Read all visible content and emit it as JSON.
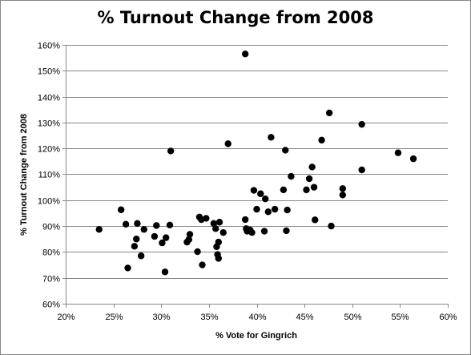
{
  "chart_data": {
    "type": "scatter",
    "title": "% Turnout Change from 2008",
    "xlabel": "% Vote for Gingrich",
    "ylabel": "% Turnout Change from 2008",
    "xlim": [
      0.2,
      0.6
    ],
    "ylim": [
      0.6,
      1.6
    ],
    "x_ticks": [
      0.2,
      0.25,
      0.3,
      0.35,
      0.4,
      0.45,
      0.5,
      0.55,
      0.6
    ],
    "x_tick_labels": [
      "20%",
      "25%",
      "30%",
      "35%",
      "40%",
      "45%",
      "50%",
      "55%",
      "60%"
    ],
    "y_ticks": [
      0.6,
      0.7,
      0.8,
      0.9,
      1.0,
      1.1,
      1.2,
      1.3,
      1.4,
      1.5,
      1.6
    ],
    "y_tick_labels": [
      "60%",
      "70%",
      "80%",
      "90%",
      "100%",
      "110%",
      "120%",
      "130%",
      "140%",
      "150%",
      "160%"
    ],
    "grid": "horizontal",
    "legend": "none",
    "marker_color": "#000000",
    "points": [
      [
        0.235,
        0.887
      ],
      [
        0.258,
        0.963
      ],
      [
        0.263,
        0.907
      ],
      [
        0.265,
        0.738
      ],
      [
        0.272,
        0.822
      ],
      [
        0.274,
        0.85
      ],
      [
        0.275,
        0.91
      ],
      [
        0.279,
        0.785
      ],
      [
        0.282,
        0.887
      ],
      [
        0.293,
        0.86
      ],
      [
        0.295,
        0.902
      ],
      [
        0.301,
        0.835
      ],
      [
        0.304,
        0.723
      ],
      [
        0.305,
        0.855
      ],
      [
        0.309,
        0.904
      ],
      [
        0.31,
        1.19
      ],
      [
        0.327,
        0.838
      ],
      [
        0.329,
        0.848
      ],
      [
        0.33,
        0.868
      ],
      [
        0.338,
        0.801
      ],
      [
        0.34,
        0.935
      ],
      [
        0.342,
        0.925
      ],
      [
        0.343,
        0.75
      ],
      [
        0.347,
        0.93
      ],
      [
        0.355,
        0.91
      ],
      [
        0.357,
        0.89
      ],
      [
        0.358,
        0.82
      ],
      [
        0.359,
        0.79
      ],
      [
        0.36,
        0.838
      ],
      [
        0.36,
        0.775
      ],
      [
        0.361,
        0.915
      ],
      [
        0.365,
        0.875
      ],
      [
        0.37,
        1.218
      ],
      [
        0.388,
        1.565
      ],
      [
        0.388,
        0.925
      ],
      [
        0.389,
        0.89
      ],
      [
        0.39,
        0.88
      ],
      [
        0.393,
        0.885
      ],
      [
        0.395,
        0.875
      ],
      [
        0.397,
        1.038
      ],
      [
        0.4,
        0.965
      ],
      [
        0.404,
        1.025
      ],
      [
        0.408,
        0.88
      ],
      [
        0.409,
        1.005
      ],
      [
        0.412,
        0.955
      ],
      [
        0.415,
        1.243
      ],
      [
        0.419,
        0.965
      ],
      [
        0.428,
        1.04
      ],
      [
        0.43,
        1.193
      ],
      [
        0.431,
        0.882
      ],
      [
        0.432,
        0.962
      ],
      [
        0.436,
        1.092
      ],
      [
        0.452,
        1.04
      ],
      [
        0.455,
        1.083
      ],
      [
        0.458,
        1.128
      ],
      [
        0.46,
        1.05
      ],
      [
        0.461,
        0.924
      ],
      [
        0.468,
        1.232
      ],
      [
        0.476,
        1.337
      ],
      [
        0.478,
        0.9
      ],
      [
        0.49,
        1.045
      ],
      [
        0.49,
        1.02
      ],
      [
        0.51,
        1.293
      ],
      [
        0.51,
        1.117
      ],
      [
        0.548,
        1.183
      ],
      [
        0.564,
        1.16
      ]
    ]
  }
}
